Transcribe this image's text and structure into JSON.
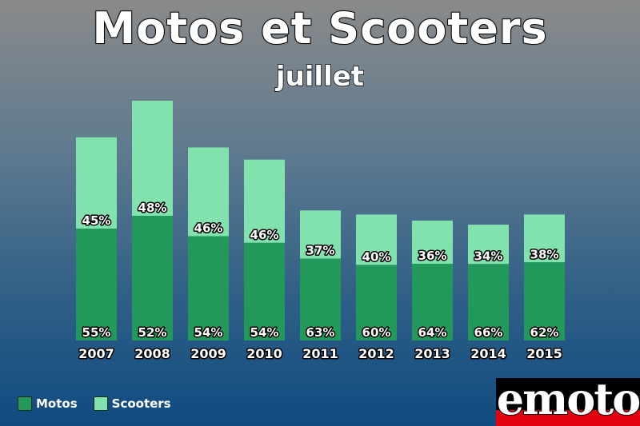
{
  "header": {
    "title": "Motos et Scooters",
    "subtitle": "juillet"
  },
  "legend": [
    {
      "label": "Motos",
      "color": "#22995a"
    },
    {
      "label": "Scooters",
      "color": "#82e2ae"
    }
  ],
  "logo": {
    "text": "emoto"
  },
  "chart_data": {
    "type": "bar",
    "stacked": true,
    "title": "Motos et Scooters",
    "subtitle": "juillet",
    "categories": [
      "2007",
      "2008",
      "2009",
      "2010",
      "2011",
      "2012",
      "2013",
      "2014",
      "2015"
    ],
    "totals_relative": [
      1.0,
      1.18,
      0.95,
      0.89,
      0.64,
      0.62,
      0.59,
      0.57,
      0.62
    ],
    "series": [
      {
        "name": "Motos",
        "color": "#22995a",
        "values": [
          55,
          52,
          54,
          54,
          63,
          60,
          64,
          66,
          62
        ],
        "labels": [
          "55%",
          "52%",
          "54%",
          "54%",
          "63%",
          "60%",
          "64%",
          "66%",
          "62%"
        ]
      },
      {
        "name": "Scooters",
        "color": "#82e2ae",
        "values": [
          45,
          48,
          46,
          46,
          37,
          40,
          36,
          34,
          38
        ],
        "labels": [
          "45%",
          "48%",
          "46%",
          "46%",
          "37%",
          "40%",
          "36%",
          "34%",
          "38%"
        ]
      }
    ],
    "legend_position": "bottom-left",
    "grid": false
  }
}
